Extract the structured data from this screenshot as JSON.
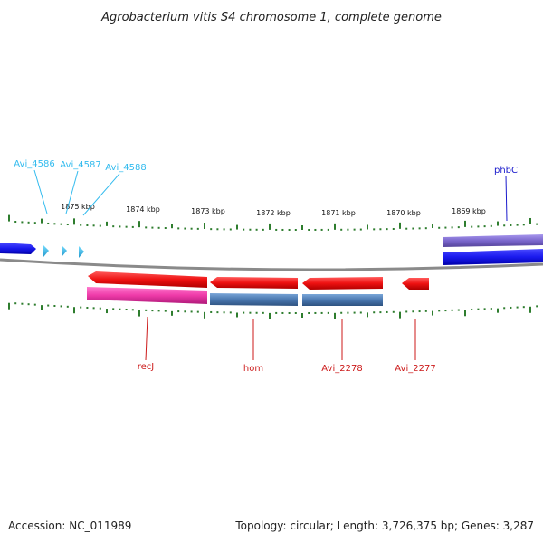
{
  "title": "Agrobacterium vitis S4 chromosome 1, complete genome",
  "footer": {
    "accession": "Accession: NC_011989",
    "summary": "Topology: circular; Length: 3,726,375 bp; Genes: 3,287"
  },
  "colors": {
    "backbone": "#888888",
    "tick": "#2e7d2e",
    "strand_plus_label": "#33bbee",
    "strand_minus_label": "#cc1a1a",
    "phbC_label": "#1a1acc",
    "cds_red": "#ee1111",
    "gene_pink": "#ee3aa8",
    "gene_steel": "#4a78b0",
    "gene_blue": "#1a1aee",
    "gene_purple": "#7a66cc"
  },
  "scale_labels": [
    "1875 kbp",
    "1874 kbp",
    "1873 kbp",
    "1872 kbp",
    "1871 kbp",
    "1870 kbp",
    "1869 kbp"
  ],
  "gene_labels": [
    {
      "text": "Avi_4586",
      "color": "strand_plus_label"
    },
    {
      "text": "Avi_4587",
      "color": "strand_plus_label"
    },
    {
      "text": "Avi_4588",
      "color": "strand_plus_label"
    },
    {
      "text": "phbC",
      "color": "phbC_label"
    },
    {
      "text": "recJ",
      "color": "strand_minus_label"
    },
    {
      "text": "hom",
      "color": "strand_minus_label"
    },
    {
      "text": "Avi_2278",
      "color": "strand_minus_label"
    },
    {
      "text": "Avi_2277",
      "color": "strand_minus_label"
    }
  ]
}
